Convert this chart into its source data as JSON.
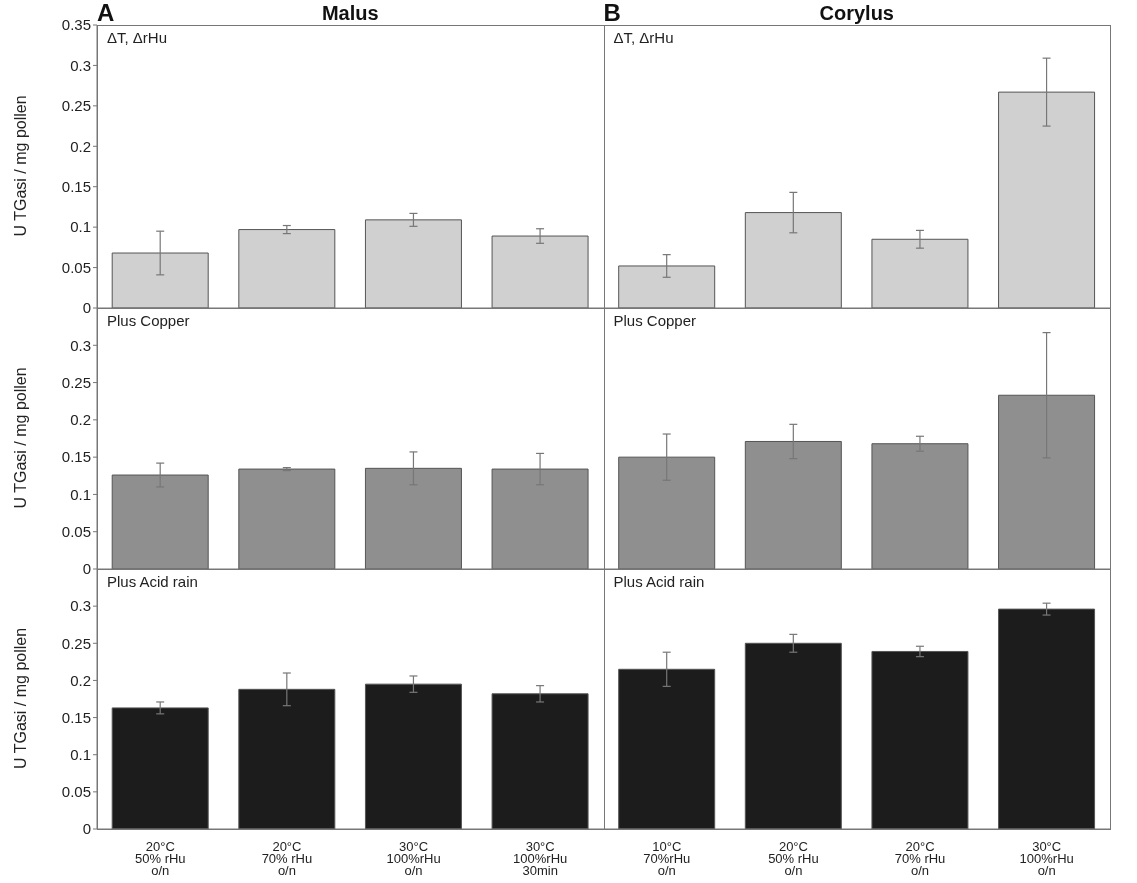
{
  "chart_data": [
    {
      "type": "bar",
      "ylabel": "U TGasi / mg pollen",
      "annotations": [
        "A",
        "Malus",
        "B",
        "Corylus",
        "ΔT, ΔrHu",
        "ΔT, ΔrHu"
      ],
      "categories": [
        null,
        null,
        null,
        null,
        null,
        null,
        null,
        null
      ],
      "values": [
        0.068,
        0.097,
        0.109,
        0.089,
        0.052,
        0.118,
        0.085,
        0.267
      ],
      "errors": [
        0.027,
        0.005,
        0.008,
        0.009,
        0.014,
        0.025,
        0.011,
        0.042
      ],
      "color": "#d0d0d0",
      "ylim": [
        0,
        0.35
      ],
      "yticks": [
        0,
        0.05,
        0.1,
        0.15,
        0.2,
        0.25,
        0.3,
        0.35
      ],
      "tick_labels": "y"
    },
    {
      "type": "bar",
      "ylabel": "U TGasi / mg pollen",
      "annotations": [
        "Plus Copper",
        "Plus Copper"
      ],
      "categories": [
        null,
        null,
        null,
        null,
        null,
        null,
        null,
        null
      ],
      "values": [
        0.126,
        0.134,
        0.135,
        0.134,
        0.15,
        0.171,
        0.168,
        0.233
      ],
      "errors": [
        0.016,
        0.002,
        0.022,
        0.021,
        0.031,
        0.023,
        0.01,
        0.084
      ],
      "color": "#8f8f8f",
      "ylim": [
        0,
        0.35
      ],
      "yticks": [
        0,
        0.05,
        0.1,
        0.15,
        0.2,
        0.25,
        0.3
      ],
      "tick_labels": "y"
    },
    {
      "type": "bar",
      "ylabel": "U TGasi / mg pollen",
      "annotations": [
        "Plus Acid rain",
        "Plus Acid rain"
      ],
      "categories": [
        "20°C\n50% rHu\no/n",
        "20°C\n70% rHu\no/n",
        "30°C\n100%rHu\no/n",
        "30°C\n100%rHu\n30min",
        "10°C\n70%rHu\no/n",
        "20°C\n50% rHu\no/n",
        "20°C\n70% rHu\no/n",
        "30°C\n100%rHu\no/n"
      ],
      "values": [
        0.163,
        0.188,
        0.195,
        0.182,
        0.215,
        0.25,
        0.239,
        0.296
      ],
      "errors": [
        0.008,
        0.022,
        0.011,
        0.011,
        0.023,
        0.012,
        0.007,
        0.008
      ],
      "color": "#1c1c1c",
      "ylim": [
        0,
        0.35
      ],
      "yticks": [
        0,
        0.05,
        0.1,
        0.15,
        0.2,
        0.25,
        0.3
      ]
    }
  ]
}
